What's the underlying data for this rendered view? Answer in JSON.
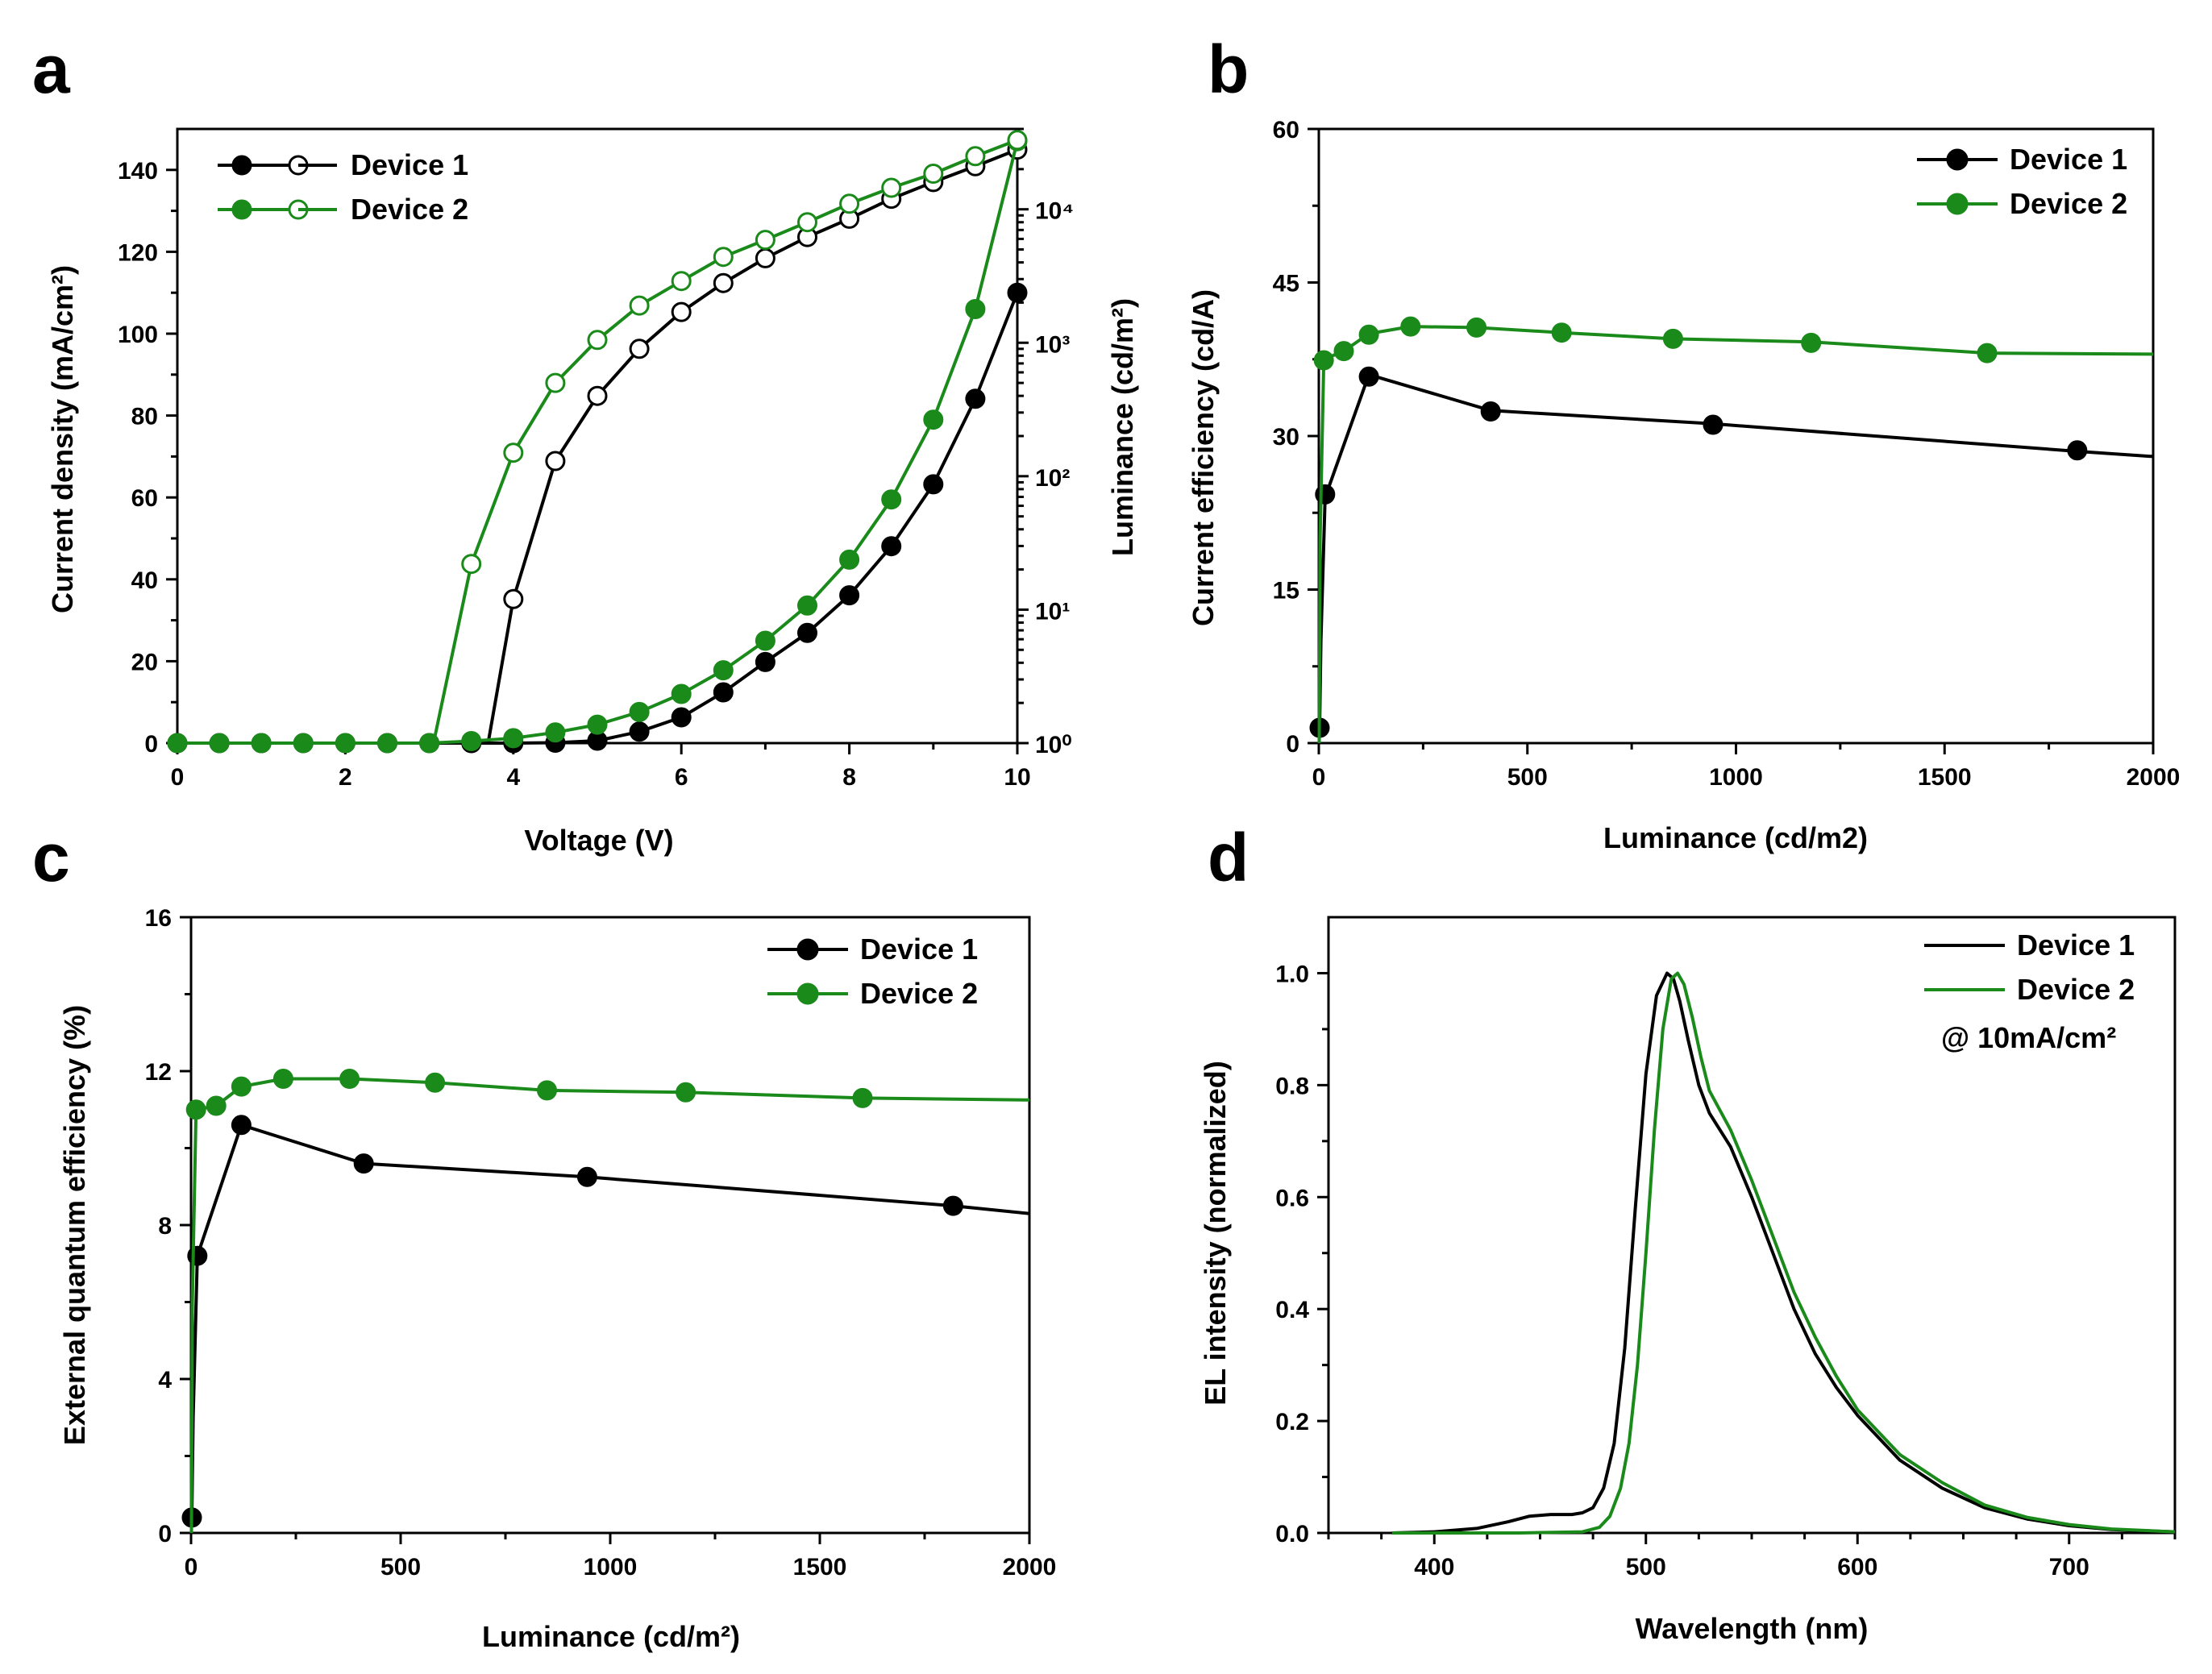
{
  "colors": {
    "device1": "#000000",
    "device2": "#1a8a1a"
  },
  "chart_data": [
    {
      "id": "a",
      "type": "line",
      "panel_label": "a",
      "xlabel": "Voltage (V)",
      "ylabel": "Current density (mA/cm²)",
      "y2label": "Luminance (cd/m²)",
      "xlim": [
        0,
        10
      ],
      "ylim": [
        0,
        150
      ],
      "y2lim": [
        1,
        40000
      ],
      "y2scale": "log",
      "xticks": [
        0,
        2,
        4,
        6,
        8,
        10
      ],
      "yticks": [
        0,
        20,
        40,
        60,
        80,
        100,
        120,
        140
      ],
      "y2ticks": [
        1,
        10,
        100,
        1000,
        10000
      ],
      "y2ticklabels": [
        "10⁰",
        "10¹",
        "10²",
        "10³",
        "10⁴"
      ],
      "legend": [
        "Device 1",
        "Device 2"
      ],
      "legend_position": "top-left",
      "series": [
        {
          "name": "Device 1",
          "quantity": "current density",
          "axis": "left",
          "marker": "filled",
          "x": [
            0,
            0.5,
            1,
            1.5,
            2,
            2.5,
            3,
            3.5,
            4,
            4.5,
            5,
            5.5,
            6,
            6.5,
            7,
            7.5,
            8,
            8.5,
            9,
            9.5,
            10
          ],
          "y": [
            0,
            0,
            0,
            0,
            0,
            0,
            0,
            0,
            0,
            0.1,
            0.6,
            2.8,
            6.3,
            12.4,
            19.8,
            26.9,
            36.1,
            48.1,
            63.2,
            84.1,
            110
          ]
        },
        {
          "name": "Device 1",
          "quantity": "luminance",
          "axis": "right",
          "marker": "open",
          "x": [
            3.7,
            4,
            4.5,
            5,
            5.5,
            6,
            6.5,
            7,
            7.5,
            8,
            8.5,
            9,
            9.5,
            10
          ],
          "y": [
            1,
            12,
            130,
            400,
            900,
            1700,
            2800,
            4300,
            6200,
            8500,
            12000,
            16000,
            21000,
            28000
          ]
        },
        {
          "name": "Device 2",
          "quantity": "current density",
          "axis": "left",
          "marker": "filled",
          "x": [
            0,
            0.5,
            1,
            1.5,
            2,
            2.5,
            3,
            3.5,
            4,
            4.5,
            5,
            5.5,
            6,
            6.5,
            7,
            7.5,
            8,
            8.5,
            9,
            9.5,
            10
          ],
          "y": [
            0,
            0,
            0,
            0,
            0,
            0,
            0,
            0.5,
            1.2,
            2.6,
            4.5,
            7.6,
            12,
            17.8,
            25,
            33.6,
            44.8,
            59.5,
            79,
            106,
            147
          ]
        },
        {
          "name": "Device 2",
          "quantity": "luminance",
          "axis": "right",
          "marker": "open",
          "x": [
            3.05,
            3.5,
            4,
            4.5,
            5,
            5.5,
            6,
            6.5,
            7,
            7.5,
            8,
            8.5,
            9,
            9.5,
            10
          ],
          "y": [
            1,
            22,
            150,
            500,
            1050,
            1900,
            2900,
            4400,
            5900,
            8000,
            11000,
            14500,
            18500,
            25000,
            33000
          ]
        }
      ]
    },
    {
      "id": "b",
      "type": "line",
      "panel_label": "b",
      "xlabel": "Luminance (cd/m2)",
      "ylabel": "Current efficiency (cd/A)",
      "xlim": [
        0,
        2000
      ],
      "ylim": [
        0,
        60
      ],
      "xticks": [
        0,
        500,
        1000,
        1500,
        2000
      ],
      "yticks": [
        0,
        15,
        30,
        45,
        60
      ],
      "legend": [
        "Device 1",
        "Device 2"
      ],
      "legend_position": "top-right",
      "series": [
        {
          "name": "Device 1",
          "line_x": [
            2,
            5,
            15,
            120,
            412,
            945,
            1818,
            2000
          ],
          "line_y": [
            1.5,
            10,
            24,
            36,
            32.5,
            31.2,
            28.5,
            28
          ],
          "x": [
            2,
            15,
            120,
            412,
            945,
            1818
          ],
          "y": [
            1.5,
            24.3,
            35.8,
            32.4,
            31.1,
            28.6
          ]
        },
        {
          "name": "Device 2",
          "line_x": [
            1,
            3,
            12,
            60,
            120,
            220,
            378,
            582,
            849,
            1180,
            1602,
            2000
          ],
          "line_y": [
            0,
            20,
            37.5,
            38.3,
            40,
            40.7,
            40.6,
            40.1,
            39.5,
            39.2,
            38.1,
            38
          ],
          "x": [
            12,
            60,
            120,
            220,
            378,
            582,
            849,
            1180,
            1602
          ],
          "y": [
            37.4,
            38.3,
            39.9,
            40.7,
            40.6,
            40.1,
            39.5,
            39.1,
            38.1
          ]
        }
      ]
    },
    {
      "id": "c",
      "type": "line",
      "panel_label": "c",
      "xlabel": "Luminance (cd/m²)",
      "ylabel": "External quantum efficiency (%)",
      "xlim": [
        0,
        2000
      ],
      "ylim": [
        0,
        16
      ],
      "xticks": [
        0,
        500,
        1000,
        1500,
        2000
      ],
      "yticks": [
        0,
        4,
        8,
        12,
        16
      ],
      "legend": [
        "Device 1",
        "Device 2"
      ],
      "legend_position": "top-right",
      "series": [
        {
          "name": "Device 1",
          "line_x": [
            2,
            5,
            15,
            120,
            412,
            945,
            1818,
            2000
          ],
          "line_y": [
            0.4,
            3,
            7.2,
            10.6,
            9.6,
            9.25,
            8.5,
            8.3
          ],
          "x": [
            2,
            15,
            120,
            412,
            945,
            1818
          ],
          "y": [
            0.4,
            7.2,
            10.6,
            9.6,
            9.25,
            8.5
          ]
        },
        {
          "name": "Device 2",
          "line_x": [
            1,
            3,
            12,
            60,
            120,
            220,
            378,
            582,
            849,
            1180,
            1602,
            2000
          ],
          "line_y": [
            0,
            6,
            11,
            11.1,
            11.6,
            11.8,
            11.8,
            11.7,
            11.5,
            11.45,
            11.3,
            11.25
          ],
          "x": [
            12,
            60,
            120,
            220,
            378,
            582,
            849,
            1180,
            1602
          ],
          "y": [
            11,
            11.1,
            11.6,
            11.8,
            11.8,
            11.7,
            11.5,
            11.45,
            11.3
          ]
        }
      ]
    },
    {
      "id": "d",
      "type": "line",
      "panel_label": "d",
      "xlabel": "Wavelength (nm)",
      "ylabel": "EL intensity (normalized)",
      "xlim": [
        350,
        750
      ],
      "ylim": [
        0,
        1.1
      ],
      "xticks": [
        400,
        500,
        600,
        700
      ],
      "yticks": [
        0.0,
        0.2,
        0.4,
        0.6,
        0.8,
        1.0
      ],
      "yticklabels": [
        "0.0",
        "0.2",
        "0.4",
        "0.6",
        "0.8",
        "1.0"
      ],
      "legend": [
        "Device 1",
        "Device 2"
      ],
      "annotation": "@ 10mA/cm²",
      "legend_position": "top-right",
      "series": [
        {
          "name": "Device 1",
          "x": [
            380,
            400,
            420,
            435,
            445,
            455,
            465,
            470,
            475,
            480,
            485,
            490,
            495,
            500,
            505,
            510,
            513,
            516,
            520,
            525,
            530,
            540,
            550,
            560,
            570,
            580,
            590,
            600,
            620,
            640,
            660,
            680,
            700,
            720,
            750
          ],
          "y": [
            0,
            0.002,
            0.008,
            0.02,
            0.03,
            0.033,
            0.033,
            0.036,
            0.045,
            0.08,
            0.16,
            0.33,
            0.58,
            0.82,
            0.96,
            1.0,
            0.99,
            0.95,
            0.88,
            0.8,
            0.75,
            0.69,
            0.6,
            0.5,
            0.4,
            0.32,
            0.26,
            0.21,
            0.13,
            0.08,
            0.045,
            0.025,
            0.013,
            0.006,
            0.002
          ]
        },
        {
          "name": "Device 2",
          "x": [
            380,
            440,
            470,
            478,
            483,
            488,
            492,
            496,
            500,
            504,
            508,
            512,
            515,
            518,
            522,
            526,
            530,
            540,
            550,
            560,
            570,
            580,
            590,
            600,
            620,
            640,
            660,
            680,
            700,
            720,
            750
          ],
          "y": [
            0,
            0,
            0.002,
            0.01,
            0.03,
            0.08,
            0.16,
            0.3,
            0.5,
            0.72,
            0.9,
            0.99,
            1.0,
            0.98,
            0.92,
            0.85,
            0.79,
            0.72,
            0.63,
            0.53,
            0.43,
            0.35,
            0.28,
            0.22,
            0.14,
            0.09,
            0.05,
            0.028,
            0.015,
            0.007,
            0.002
          ]
        }
      ]
    }
  ]
}
